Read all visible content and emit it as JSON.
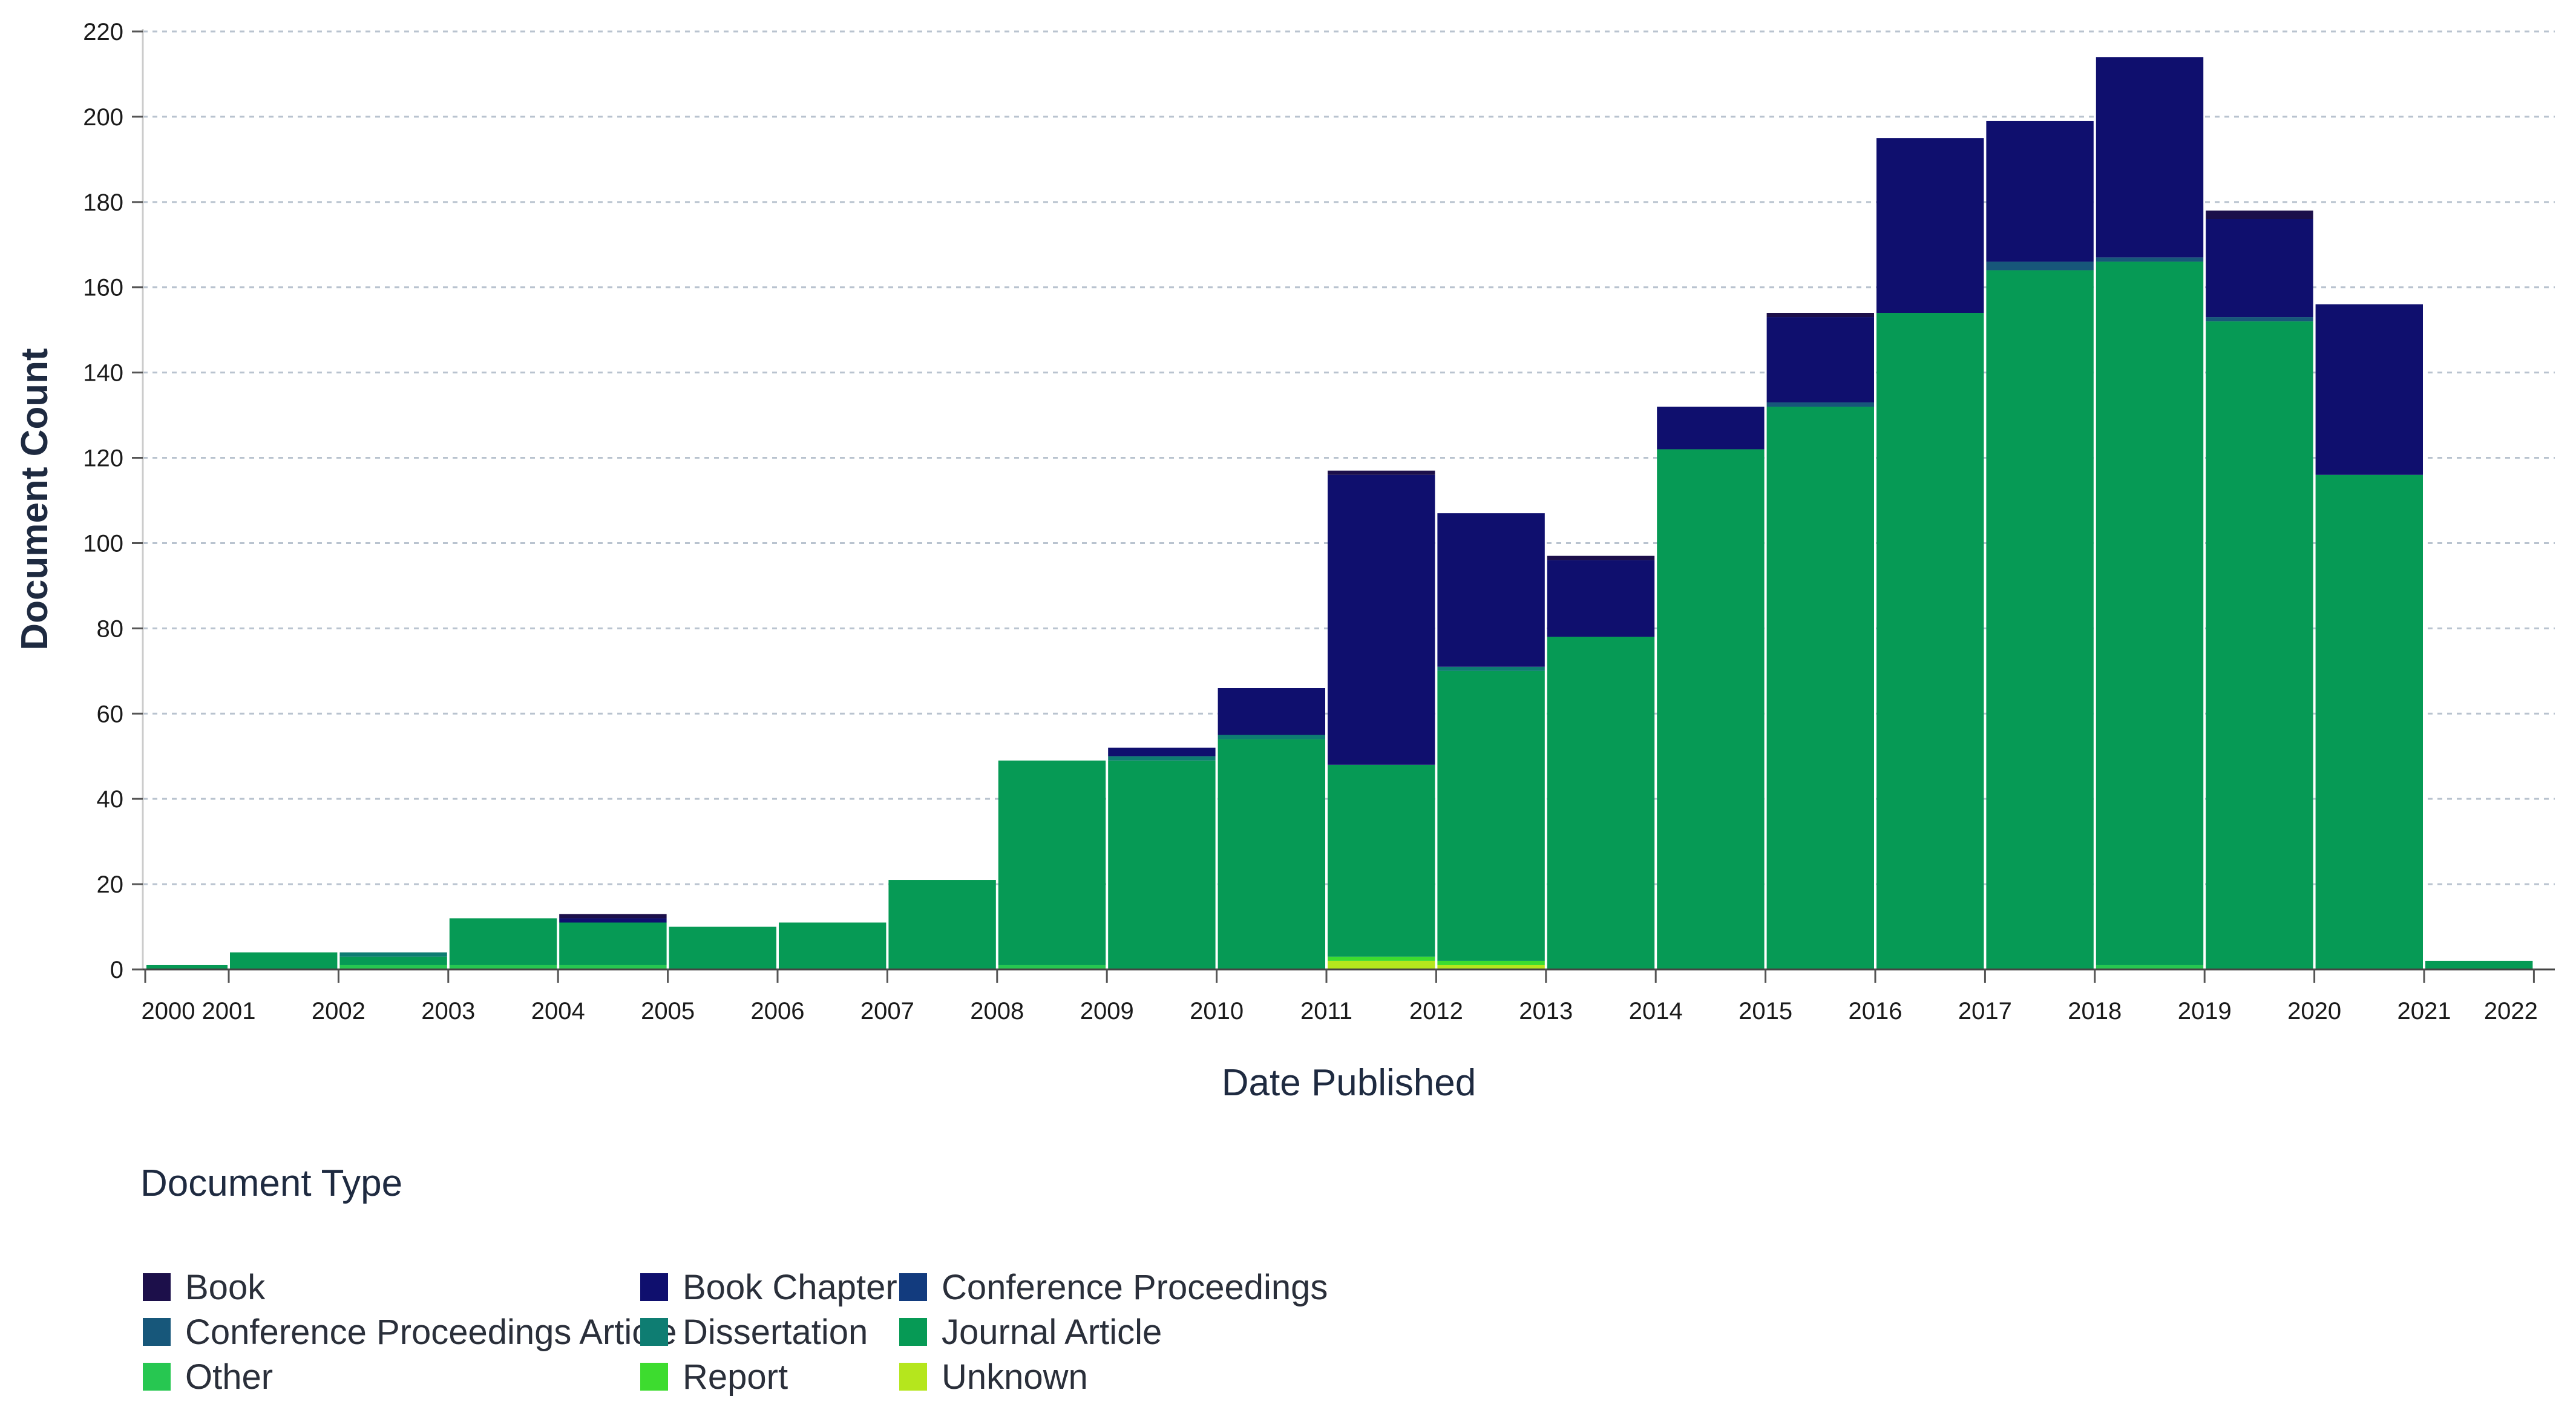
{
  "chart_data": {
    "type": "bar",
    "stacked": true,
    "title": "",
    "xlabel": "Date Published",
    "ylabel": "Document Count",
    "ylim": [
      0,
      220
    ],
    "yticks": [
      0,
      20,
      40,
      60,
      80,
      100,
      120,
      140,
      160,
      180,
      200,
      220
    ],
    "x_ticks": [
      "2000",
      "2001",
      "2002",
      "2003",
      "2004",
      "2005",
      "2006",
      "2007",
      "2008",
      "2009",
      "2010",
      "2011",
      "2012",
      "2013",
      "2014",
      "2015",
      "2016",
      "2017",
      "2018",
      "2019",
      "2020",
      "2021",
      "2022"
    ],
    "bins": [
      "2000",
      "2001",
      "2002",
      "2003",
      "2004",
      "2005",
      "2006",
      "2007",
      "2008",
      "2009",
      "2010",
      "2011",
      "2012",
      "2013",
      "2014",
      "2015",
      "2016",
      "2017",
      "2018",
      "2019",
      "2020",
      "2021"
    ],
    "grid": true,
    "legend_title": "Document Type",
    "series": [
      {
        "name": "Unknown",
        "color": "#b5e61d",
        "values": [
          0,
          0,
          0,
          0,
          0,
          0,
          0,
          0,
          0,
          0,
          0,
          2,
          1,
          0,
          0,
          0,
          0,
          0,
          0,
          0,
          0,
          0
        ]
      },
      {
        "name": "Report",
        "color": "#3ddc2f",
        "values": [
          0,
          0,
          0,
          0,
          0,
          0,
          0,
          0,
          0,
          0,
          0,
          1,
          1,
          0,
          0,
          0,
          0,
          0,
          0,
          0,
          0,
          0
        ]
      },
      {
        "name": "Other",
        "color": "#27c751",
        "values": [
          0,
          0,
          1,
          1,
          1,
          0,
          0,
          0,
          1,
          0,
          0,
          0,
          0,
          0,
          0,
          0,
          0,
          0,
          1,
          0,
          0,
          0
        ]
      },
      {
        "name": "Journal Article",
        "color": "#069a55",
        "values": [
          1,
          4,
          2,
          11,
          10,
          10,
          11,
          21,
          48,
          49,
          54,
          45,
          68,
          78,
          122,
          132,
          154,
          164,
          165,
          152,
          116,
          2
        ]
      },
      {
        "name": "Dissertation",
        "color": "#0e7d72",
        "values": [
          0,
          0,
          1,
          0,
          0,
          0,
          0,
          0,
          0,
          1,
          1,
          0,
          1,
          0,
          0,
          0,
          0,
          0,
          0,
          0,
          0,
          0
        ]
      },
      {
        "name": "Conference Proceedings Article",
        "color": "#17577a",
        "values": [
          0,
          0,
          0,
          0,
          0,
          0,
          0,
          0,
          0,
          0,
          0,
          0,
          0,
          0,
          0,
          1,
          0,
          2,
          1,
          1,
          0,
          0
        ]
      },
      {
        "name": "Conference Proceedings",
        "color": "#123b7e",
        "values": [
          0,
          0,
          0,
          0,
          0,
          0,
          0,
          0,
          0,
          0,
          0,
          0,
          0,
          0,
          0,
          0,
          0,
          0,
          0,
          0,
          0,
          0
        ]
      },
      {
        "name": "Book Chapter",
        "color": "#0f0f6e",
        "values": [
          0,
          0,
          0,
          0,
          1,
          0,
          0,
          0,
          0,
          2,
          11,
          68,
          36,
          18,
          10,
          20,
          41,
          33,
          47,
          23,
          40,
          0
        ]
      },
      {
        "name": "Book",
        "color": "#1c0f4a",
        "values": [
          0,
          0,
          0,
          0,
          1,
          0,
          0,
          0,
          0,
          0,
          0,
          1,
          0,
          1,
          0,
          1,
          0,
          0,
          0,
          2,
          0,
          0
        ]
      }
    ],
    "legend_order": [
      "Book",
      "Book Chapter",
      "Conference Proceedings",
      "Conference Proceedings Article",
      "Dissertation",
      "Journal Article",
      "Other",
      "Report",
      "Unknown"
    ]
  }
}
